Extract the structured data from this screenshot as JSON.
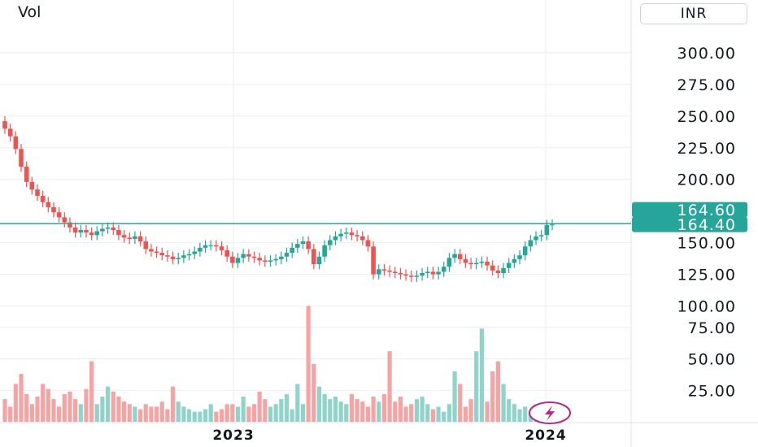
{
  "header": {
    "volume_label": "Vol",
    "currency": "INR"
  },
  "colors": {
    "up": "#26a69a",
    "down": "#ef5350",
    "up_volume": "#8fd3cb",
    "down_volume": "#f6a3a3",
    "price_line": "#26a69a",
    "grid": "#eceef2"
  },
  "chart_data": {
    "type": "candlestick",
    "price_axis": {
      "ticks": [
        "300.00",
        "275.00",
        "250.00",
        "225.00",
        "200.00",
        "150.00",
        "125.00",
        "100.00",
        "75.00",
        "50.00",
        "25.00"
      ],
      "tick_values": [
        300,
        275,
        250,
        225,
        200,
        150,
        125,
        100,
        75,
        50,
        25
      ]
    },
    "time_axis": {
      "labels": [
        "2023",
        "2024"
      ]
    },
    "price_badges": [
      {
        "text": "164.60",
        "value": 164.6
      },
      {
        "text": "164.40",
        "value": 164.4
      }
    ],
    "last_price": 164.4,
    "close": [
      240,
      234,
      224,
      210,
      198,
      192,
      187,
      182,
      178,
      174,
      170,
      166,
      162,
      158,
      160,
      158,
      156,
      159,
      161,
      162,
      160,
      156,
      154,
      153,
      155,
      151,
      145,
      143,
      142,
      140,
      139,
      137,
      138,
      140,
      141,
      143,
      146,
      148,
      148,
      147,
      144,
      139,
      134,
      138,
      141,
      139,
      138,
      136,
      135,
      136,
      137,
      139,
      142,
      146,
      149,
      151,
      145,
      133,
      139,
      148,
      152,
      155,
      157,
      158,
      156,
      155,
      152,
      147,
      125,
      129,
      128,
      127,
      126,
      125,
      124,
      123,
      124,
      126,
      127,
      125,
      127,
      131,
      138,
      141,
      137,
      134,
      133,
      134,
      135,
      132,
      128,
      126,
      130,
      134,
      137,
      140,
      147,
      152,
      155,
      156,
      164,
      164.4
    ],
    "open": [
      246,
      240,
      234,
      224,
      210,
      198,
      192,
      187,
      182,
      178,
      174,
      170,
      166,
      162,
      158,
      160,
      158,
      156,
      159,
      161,
      162,
      160,
      156,
      154,
      153,
      155,
      151,
      145,
      143,
      142,
      140,
      139,
      137,
      138,
      140,
      141,
      143,
      146,
      148,
      148,
      147,
      144,
      139,
      134,
      138,
      141,
      139,
      138,
      136,
      135,
      136,
      137,
      139,
      142,
      146,
      149,
      151,
      145,
      133,
      139,
      148,
      152,
      155,
      157,
      158,
      156,
      155,
      152,
      147,
      125,
      129,
      128,
      127,
      126,
      125,
      124,
      123,
      124,
      126,
      127,
      125,
      127,
      131,
      138,
      141,
      137,
      134,
      133,
      134,
      135,
      132,
      128,
      126,
      130,
      134,
      137,
      140,
      147,
      152,
      155,
      156,
      164
    ],
    "volume": [
      18,
      12,
      30,
      38,
      22,
      14,
      20,
      30,
      26,
      18,
      12,
      22,
      24,
      18,
      14,
      26,
      48,
      14,
      20,
      28,
      24,
      20,
      16,
      14,
      12,
      10,
      14,
      12,
      12,
      16,
      10,
      28,
      16,
      12,
      10,
      8,
      8,
      10,
      14,
      8,
      10,
      14,
      14,
      12,
      20,
      12,
      14,
      24,
      18,
      12,
      14,
      18,
      22,
      10,
      30,
      14,
      92,
      46,
      28,
      22,
      18,
      20,
      16,
      14,
      22,
      18,
      16,
      12,
      20,
      16,
      22,
      56,
      16,
      20,
      12,
      14,
      18,
      20,
      14,
      10,
      12,
      8,
      14,
      40,
      30,
      12,
      18,
      56,
      74,
      16,
      40,
      48,
      30,
      18,
      14,
      10,
      12,
      8,
      14,
      12,
      10,
      14
    ]
  }
}
